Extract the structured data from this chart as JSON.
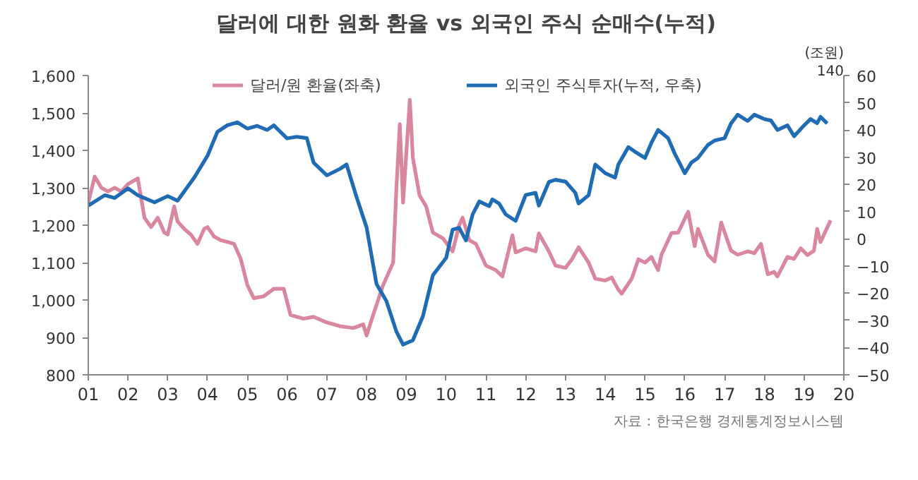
{
  "chart_data": {
    "type": "line",
    "title": "달러에 대한 원화 환율 vs 외국인 주식 순매수(누적)",
    "y2label": "(조원)",
    "annotations": [
      "140",
      "자료 : 한국은행 경제통계정보시스템"
    ],
    "xlim": [
      "2001-01",
      "2020-01"
    ],
    "xticks": [
      {
        "value": "2001-01",
        "label": "01"
      },
      {
        "value": "2002-01",
        "label": "02"
      },
      {
        "value": "2003-01",
        "label": "03"
      },
      {
        "value": "2004-01",
        "label": "04"
      },
      {
        "value": "2005-01",
        "label": "05"
      },
      {
        "value": "2006-01",
        "label": "06"
      },
      {
        "value": "2007-01",
        "label": "07"
      },
      {
        "value": "2008-01",
        "label": "08"
      },
      {
        "value": "2009-01",
        "label": "09"
      },
      {
        "value": "2010-01",
        "label": "10"
      },
      {
        "value": "2011-01",
        "label": "11"
      },
      {
        "value": "2012-01",
        "label": "12"
      },
      {
        "value": "2013-01",
        "label": "13"
      },
      {
        "value": "2014-01",
        "label": "14"
      },
      {
        "value": "2015-01",
        "label": "15"
      },
      {
        "value": "2016-01",
        "label": "16"
      },
      {
        "value": "2017-01",
        "label": "17"
      },
      {
        "value": "2018-01",
        "label": "18"
      },
      {
        "value": "2019-01",
        "label": "19"
      },
      {
        "value": "2020-01",
        "label": "20"
      }
    ],
    "ylim": [
      800,
      1600
    ],
    "yticks": [
      {
        "value": 800,
        "label": "800"
      },
      {
        "value": 900,
        "label": "900"
      },
      {
        "value": 1000,
        "label": "1,000"
      },
      {
        "value": 1100,
        "label": "1,100"
      },
      {
        "value": 1200,
        "label": "1,200"
      },
      {
        "value": 1300,
        "label": "1,300"
      },
      {
        "value": 1400,
        "label": "1,400"
      },
      {
        "value": 1500,
        "label": "1,500"
      },
      {
        "value": 1600,
        "label": "1,600"
      }
    ],
    "y2lim": [
      -50,
      60
    ],
    "y2ticks": [
      {
        "value": -50,
        "label": "−50"
      },
      {
        "value": -40,
        "label": "−40"
      },
      {
        "value": -30,
        "label": "−30"
      },
      {
        "value": -20,
        "label": "−20"
      },
      {
        "value": -10,
        "label": "−10"
      },
      0,
      10,
      20,
      30,
      40,
      50,
      60
    ],
    "grid": false,
    "legend": "top",
    "line_style": "solid",
    "marker": "none",
    "series": [
      {
        "name": "달러/원 환율(좌축)",
        "color": "#d9869f",
        "x": [
          "2001-01",
          "2001-03",
          "2001-05",
          "2001-07",
          "2001-09",
          "2001-11",
          "2002-01",
          "2002-03",
          "2002-04",
          "2002-06",
          "2002-08",
          "2002-10",
          "2002-12",
          "2003-01",
          "2003-03",
          "2003-04",
          "2003-06",
          "2003-08",
          "2003-10",
          "2003-12",
          "2004-01",
          "2004-03",
          "2004-05",
          "2004-07",
          "2004-09",
          "2004-11",
          "2005-01",
          "2005-03",
          "2005-06",
          "2005-09",
          "2005-12",
          "2006-02",
          "2006-06",
          "2006-09",
          "2007-01",
          "2007-05",
          "2007-09",
          "2007-12",
          "2008-01",
          "2008-03",
          "2008-06",
          "2008-09",
          "2008-10",
          "2008-11",
          "2008-12",
          "2009-02",
          "2009-03",
          "2009-05",
          "2009-07",
          "2009-09",
          "2009-12",
          "2010-03",
          "2010-05",
          "2010-06",
          "2010-08",
          "2010-10",
          "2011-01",
          "2011-04",
          "2011-06",
          "2011-09",
          "2011-10",
          "2012-01",
          "2012-04",
          "2012-05",
          "2012-08",
          "2012-10",
          "2013-01",
          "2013-03",
          "2013-05",
          "2013-08",
          "2013-10",
          "2014-01",
          "2014-03",
          "2014-05",
          "2014-06",
          "2014-09",
          "2014-11",
          "2015-01",
          "2015-03",
          "2015-05",
          "2015-06",
          "2015-09",
          "2015-11",
          "2016-02",
          "2016-04",
          "2016-05",
          "2016-08",
          "2016-10",
          "2016-12",
          "2017-03",
          "2017-05",
          "2017-08",
          "2017-10",
          "2017-12",
          "2018-02",
          "2018-04",
          "2018-05",
          "2018-08",
          "2018-10",
          "2018-12",
          "2019-02",
          "2019-04",
          "2019-05",
          "2019-06",
          "2019-09"
        ],
        "values": [
          1260,
          1330,
          1300,
          1290,
          1300,
          1290,
          1310,
          1320,
          1325,
          1220,
          1195,
          1220,
          1180,
          1175,
          1250,
          1210,
          1190,
          1175,
          1150,
          1190,
          1195,
          1170,
          1160,
          1155,
          1150,
          1110,
          1040,
          1005,
          1010,
          1030,
          1030,
          960,
          950,
          955,
          940,
          930,
          925,
          935,
          905,
          960,
          1040,
          1100,
          1300,
          1470,
          1260,
          1535,
          1380,
          1280,
          1250,
          1180,
          1165,
          1130,
          1200,
          1220,
          1160,
          1150,
          1092,
          1080,
          1063,
          1173,
          1127,
          1138,
          1130,
          1178,
          1130,
          1092,
          1086,
          1109,
          1141,
          1100,
          1057,
          1052,
          1060,
          1028,
          1017,
          1057,
          1109,
          1100,
          1115,
          1080,
          1121,
          1179,
          1180,
          1236,
          1144,
          1190,
          1121,
          1103,
          1207,
          1132,
          1121,
          1130,
          1125,
          1150,
          1069,
          1075,
          1063,
          1115,
          1110,
          1138,
          1120,
          1132,
          1190,
          1155,
          1213
        ]
      },
      {
        "name": "외국인 주식투자(누적, 우축)",
        "color": "#1f6cb4",
        "axis": "y2",
        "x": [
          "2001-01",
          "2001-06",
          "2001-09",
          "2002-01",
          "2002-04",
          "2002-09",
          "2003-01",
          "2003-04",
          "2003-09",
          "2004-01",
          "2004-04",
          "2004-07",
          "2004-10",
          "2005-01",
          "2005-04",
          "2005-07",
          "2005-09",
          "2006-01",
          "2006-04",
          "2006-07",
          "2006-09",
          "2007-01",
          "2007-05",
          "2007-07",
          "2007-10",
          "2008-01",
          "2008-04",
          "2008-07",
          "2008-10",
          "2008-12",
          "2009-03",
          "2009-06",
          "2009-09",
          "2010-01",
          "2010-03",
          "2010-05",
          "2010-07",
          "2010-09",
          "2010-11",
          "2011-02",
          "2011-03",
          "2011-05",
          "2011-07",
          "2011-10",
          "2012-01",
          "2012-04",
          "2012-05",
          "2012-08",
          "2012-10",
          "2013-01",
          "2013-04",
          "2013-05",
          "2013-08",
          "2013-10",
          "2014-01",
          "2014-04",
          "2014-05",
          "2014-08",
          "2014-10",
          "2015-01",
          "2015-03",
          "2015-05",
          "2015-08",
          "2015-10",
          "2016-01",
          "2016-03",
          "2016-05",
          "2016-08",
          "2016-10",
          "2017-01",
          "2017-03",
          "2017-05",
          "2017-08",
          "2017-10",
          "2018-01",
          "2018-03",
          "2018-05",
          "2018-08",
          "2018-10",
          "2019-01",
          "2019-03",
          "2019-05",
          "2019-06",
          "2019-08"
        ],
        "values": [
          12.2,
          16,
          15,
          18.5,
          16,
          13.4,
          15.7,
          14,
          22.5,
          30.5,
          39.3,
          41.7,
          42.8,
          40.5,
          41.5,
          40,
          41.7,
          36.9,
          37.5,
          37,
          28,
          23.3,
          25.7,
          27.3,
          15.3,
          4.2,
          -16.6,
          -22.9,
          -34.1,
          -38.9,
          -37.3,
          -28.5,
          -13.4,
          -7,
          3.4,
          4,
          -0.6,
          9,
          13.7,
          12,
          14.5,
          13,
          9,
          6.6,
          16.1,
          16.9,
          12.2,
          20.9,
          21.7,
          21,
          16.9,
          13,
          16,
          27.3,
          24.1,
          22.5,
          27.3,
          33.7,
          32,
          29.7,
          35.3,
          40,
          37,
          31.3,
          24.1,
          28,
          29.7,
          34.5,
          36.1,
          37,
          42.4,
          45.6,
          43.3,
          45.6,
          44,
          43.5,
          40,
          41.7,
          37.7,
          41.7,
          44,
          42.5,
          44.8,
          42.4
        ]
      }
    ]
  }
}
